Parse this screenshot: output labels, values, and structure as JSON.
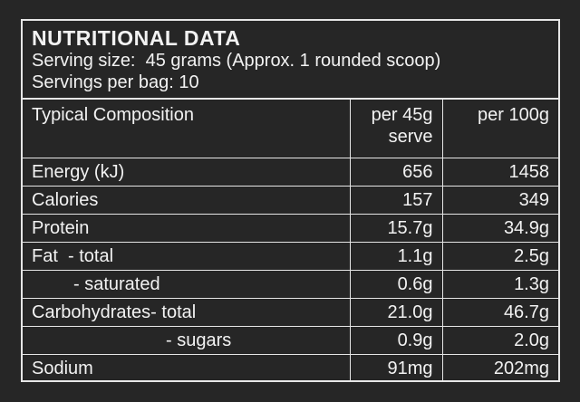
{
  "header": {
    "title": "NUTRITIONAL DATA",
    "serving_size": "Serving size:  45 grams (Approx. 1 rounded scoop)",
    "servings_per_bag": "Servings per bag: 10"
  },
  "table": {
    "columns": [
      "Typical Composition",
      "per 45g\nserve",
      "per 100g"
    ],
    "rows": [
      {
        "label": "Energy (kJ)",
        "per_serve": "656",
        "per_100g": "1458"
      },
      {
        "label": "Calories",
        "per_serve": "157",
        "per_100g": "349"
      },
      {
        "label": "Protein",
        "per_serve": "15.7g",
        "per_100g": "34.9g"
      },
      {
        "label": "Fat  - total",
        "per_serve": "1.1g",
        "per_100g": "2.5g"
      },
      {
        "label": "- saturated",
        "per_serve": "0.6g",
        "per_100g": "1.3g"
      },
      {
        "label": "Carbohydrates- total",
        "per_serve": "21.0g",
        "per_100g": "46.7g"
      },
      {
        "label": "- sugars",
        "per_serve": "0.9g",
        "per_100g": "2.0g"
      },
      {
        "label": "Sodium",
        "per_serve": "91mg",
        "per_100g": "202mg"
      }
    ]
  }
}
